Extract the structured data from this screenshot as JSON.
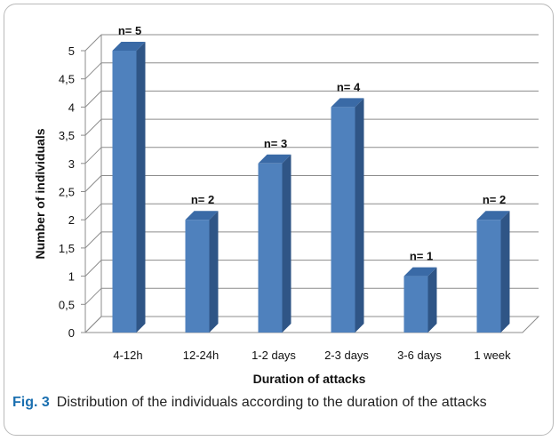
{
  "chart_data": {
    "type": "bar",
    "categories": [
      "4-12h",
      "12-24h",
      "1-2 days",
      "2-3 days",
      "3-6 days",
      "1 week"
    ],
    "values": [
      5,
      2,
      3,
      4,
      1,
      2
    ],
    "data_labels": [
      "n= 5",
      "n= 2",
      "n= 3",
      "n= 4",
      "n= 1",
      "n= 2"
    ],
    "yticks": [
      "0",
      "0,5",
      "1",
      "1,5",
      "2",
      "2,5",
      "3",
      "3,5",
      "4",
      "4,5",
      "5"
    ],
    "ylim": [
      0,
      5
    ],
    "xlabel": "Duration of attacks",
    "ylabel": "Number of individuals",
    "grid": true,
    "colors": {
      "front": "#4f81bd",
      "side": "#2f5586",
      "top": "#3a6aa6"
    }
  },
  "caption": {
    "label": "Fig. 3",
    "text": "Distribution of the individuals according to the duration of the attacks"
  }
}
